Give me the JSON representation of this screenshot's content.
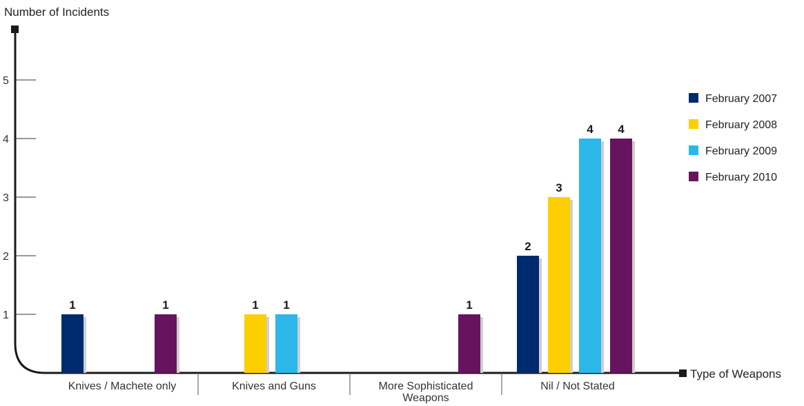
{
  "chart_data": {
    "type": "bar",
    "ylabel": "Number of Incidents",
    "xlabel": "Type of Weapons",
    "yticks": [
      1,
      2,
      3,
      4,
      5
    ],
    "ylim": [
      0,
      6
    ],
    "categories": [
      "Knives / Machete only",
      "Knives and Guns",
      "More Sophisticated Weapons",
      "Nil / Not Stated"
    ],
    "category_lines": [
      [
        "Knives / Machete only"
      ],
      [
        "Knives and Guns"
      ],
      [
        "More Sophisticated",
        "Weapons"
      ],
      [
        "Nil / Not Stated"
      ]
    ],
    "series": [
      {
        "name": "February 2007",
        "color": "#002a6e",
        "values": [
          1,
          0,
          0,
          2
        ]
      },
      {
        "name": "February 2008",
        "color": "#fcd000",
        "values": [
          0,
          1,
          0,
          3
        ]
      },
      {
        "name": "February 2009",
        "color": "#2cb7e9",
        "values": [
          0,
          1,
          0,
          4
        ]
      },
      {
        "name": "February 2010",
        "color": "#66145e",
        "values": [
          1,
          0,
          1,
          4
        ]
      }
    ],
    "legend": "right",
    "grid": false
  }
}
